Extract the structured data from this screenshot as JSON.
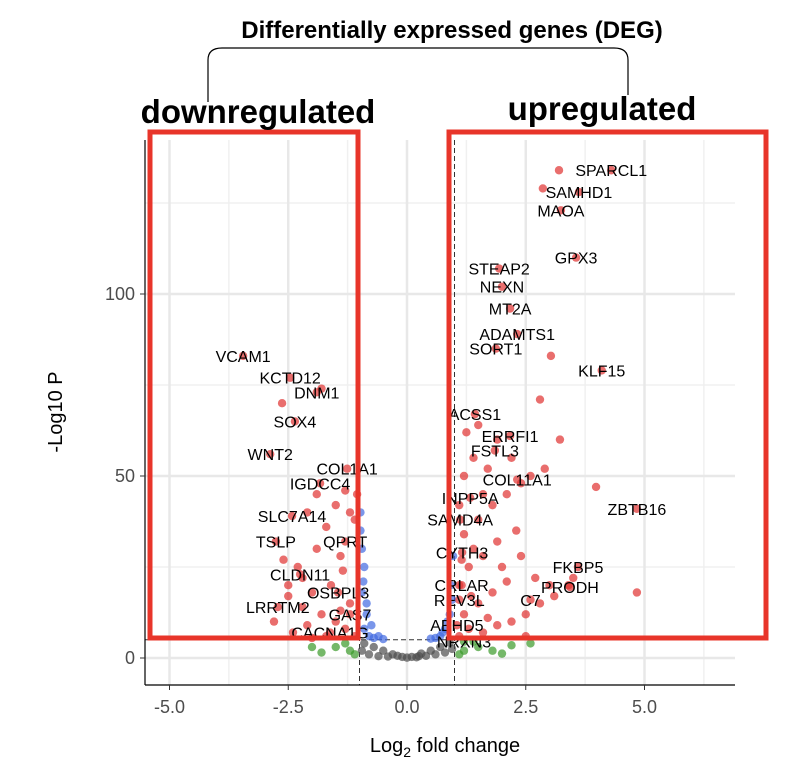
{
  "chart_data": {
    "type": "scatter",
    "title": "Differentially expressed genes (DEG)",
    "xlabel": "Log2 fold change",
    "ylabel": "-Log10 P",
    "xlim": [
      -5.5,
      6.8
    ],
    "ylim": [
      -7,
      142
    ],
    "xticks": [
      "-5.0",
      "-2.5",
      "0.0",
      "2.5",
      "5.0"
    ],
    "xtick_values": [
      -5,
      -2.5,
      0,
      2.5,
      5
    ],
    "yticks": [
      "0",
      "50",
      "100"
    ],
    "ytick_values": [
      0,
      50,
      100
    ],
    "grid": true,
    "fc_cutoff": 1,
    "p_cutoff": 5,
    "annotations": {
      "down_label": "downregulated",
      "up_label": "upregulated"
    },
    "colors": {
      "ns": "#4d4d4d",
      "log2fc": "#3a9a2a",
      "p": "#4169e1",
      "both": "#e0312f",
      "box": "#e8352a"
    },
    "labeled_genes": [
      {
        "gene": "SPARCL1",
        "x": 4.3,
        "y": 134
      },
      {
        "gene": "SAMHD1",
        "x": 3.62,
        "y": 128
      },
      {
        "gene": "MAOA",
        "x": 3.24,
        "y": 123
      },
      {
        "gene": "GPX3",
        "x": 3.56,
        "y": 110
      },
      {
        "gene": "STEAP2",
        "x": 1.94,
        "y": 107
      },
      {
        "gene": "NEXN",
        "x": 2.0,
        "y": 102
      },
      {
        "gene": "MT2A",
        "x": 2.17,
        "y": 96
      },
      {
        "gene": "ADAMTS1",
        "x": 2.32,
        "y": 89
      },
      {
        "gene": "SORT1",
        "x": 1.87,
        "y": 85
      },
      {
        "gene": "KLF15",
        "x": 4.1,
        "y": 79
      },
      {
        "gene": "ACSS1",
        "x": 1.43,
        "y": 67
      },
      {
        "gene": "ERRFI1",
        "x": 2.17,
        "y": 61
      },
      {
        "gene": "FSTL3",
        "x": 1.85,
        "y": 57
      },
      {
        "gene": "COL11A1",
        "x": 2.32,
        "y": 49
      },
      {
        "gene": "INPP5A",
        "x": 1.33,
        "y": 44
      },
      {
        "gene": "ZBTB16",
        "x": 4.84,
        "y": 41
      },
      {
        "gene": "SAMD4A",
        "x": 1.12,
        "y": 38
      },
      {
        "gene": "CYTH3",
        "x": 1.16,
        "y": 29
      },
      {
        "gene": "FKBP5",
        "x": 3.6,
        "y": 25
      },
      {
        "gene": "PRODH",
        "x": 3.43,
        "y": 19.5
      },
      {
        "gene": "CRLAR",
        "x": 1.15,
        "y": 20
      },
      {
        "gene": "REV3L",
        "x": 1.1,
        "y": 16
      },
      {
        "gene": "C7",
        "x": 2.6,
        "y": 16
      },
      {
        "gene": "ABHD5",
        "x": 1.05,
        "y": 9
      },
      {
        "gene": "NRXN3",
        "x": 1.2,
        "y": 4.5
      },
      {
        "gene": "VCAM1",
        "x": -3.45,
        "y": 83
      },
      {
        "gene": "KCTD12",
        "x": -2.46,
        "y": 77
      },
      {
        "gene": "DNM1",
        "x": -1.9,
        "y": 73
      },
      {
        "gene": "SOX4",
        "x": -2.36,
        "y": 65
      },
      {
        "gene": "WNT2",
        "x": -2.88,
        "y": 56
      },
      {
        "gene": "COL1A1",
        "x": -1.26,
        "y": 52
      },
      {
        "gene": "IGDCC4",
        "x": -1.83,
        "y": 48
      },
      {
        "gene": "SLC7A14",
        "x": -2.42,
        "y": 39
      },
      {
        "gene": "TSLP",
        "x": -2.76,
        "y": 32
      },
      {
        "gene": "QPRT",
        "x": -1.3,
        "y": 32
      },
      {
        "gene": "CLDN11",
        "x": -2.25,
        "y": 23
      },
      {
        "gene": "OSBPL3",
        "x": -1.45,
        "y": 18
      },
      {
        "gene": "LRRTM2",
        "x": -2.72,
        "y": 14
      },
      {
        "gene": "GAS7",
        "x": -1.2,
        "y": 12
      },
      {
        "gene": "CACNA1G",
        "x": -1.62,
        "y": 7
      }
    ],
    "other_points": [
      [
        -0.9,
        4
      ],
      [
        -0.7,
        3
      ],
      [
        -0.5,
        2
      ],
      [
        -0.3,
        1
      ],
      [
        -0.1,
        0.3
      ],
      [
        0,
        0.1
      ],
      [
        0.1,
        0.3
      ],
      [
        0.3,
        1.2
      ],
      [
        0.5,
        2
      ],
      [
        0.7,
        3
      ],
      [
        0.9,
        4.2
      ],
      [
        -0.8,
        1
      ],
      [
        -0.6,
        0.5
      ],
      [
        -0.4,
        0.4
      ],
      [
        0.2,
        0.2
      ],
      [
        0.4,
        0.6
      ],
      [
        0.6,
        1
      ],
      [
        0.8,
        1.5
      ],
      [
        -0.95,
        2
      ],
      [
        0.95,
        2.5
      ],
      [
        -0.2,
        0.6
      ],
      [
        0.25,
        0.5
      ],
      [
        -0.9,
        8
      ],
      [
        -0.85,
        12
      ],
      [
        -0.95,
        18
      ],
      [
        -0.8,
        6
      ],
      [
        -0.7,
        5.5
      ],
      [
        -0.9,
        25
      ],
      [
        -0.95,
        30
      ],
      [
        -0.98,
        35
      ],
      [
        -0.6,
        6
      ],
      [
        -0.75,
        9
      ],
      [
        -0.85,
        15
      ],
      [
        -0.92,
        21
      ],
      [
        0.7,
        6
      ],
      [
        0.8,
        8
      ],
      [
        0.9,
        12
      ],
      [
        0.95,
        16
      ],
      [
        0.85,
        10
      ],
      [
        0.92,
        20
      ],
      [
        0.97,
        28
      ],
      [
        0.6,
        5.5
      ],
      [
        0.75,
        7
      ],
      [
        -0.5,
        5.2
      ],
      [
        0.5,
        5.3
      ],
      [
        -0.98,
        40
      ],
      [
        -1.2,
        2
      ],
      [
        -1.5,
        3
      ],
      [
        -1.8,
        1.5
      ],
      [
        -1.3,
        4
      ],
      [
        -1.1,
        1
      ],
      [
        -2.0,
        3
      ],
      [
        1.2,
        2
      ],
      [
        1.5,
        3
      ],
      [
        1.8,
        2
      ],
      [
        2.2,
        3.5
      ],
      [
        2.6,
        4
      ],
      [
        1.1,
        1
      ],
      [
        1.4,
        4.5
      ],
      [
        2.0,
        1.2
      ],
      [
        -1.1,
        6
      ],
      [
        -1.3,
        8
      ],
      [
        -1.5,
        10
      ],
      [
        -1.8,
        12
      ],
      [
        -2.1,
        9
      ],
      [
        -2.4,
        7
      ],
      [
        -1.2,
        15
      ],
      [
        -1.6,
        20
      ],
      [
        -2.0,
        18
      ],
      [
        -2.3,
        25
      ],
      [
        -1.4,
        28
      ],
      [
        -1.9,
        30
      ],
      [
        -2.6,
        27
      ],
      [
        -1.1,
        38
      ],
      [
        -1.2,
        40
      ],
      [
        -1.7,
        36
      ],
      [
        -2.2,
        22
      ],
      [
        -2.5,
        17
      ],
      [
        -2.8,
        10
      ],
      [
        -1.35,
        24
      ],
      [
        -1.05,
        45
      ],
      [
        -1.5,
        42
      ],
      [
        -1.9,
        45
      ],
      [
        -2.1,
        40
      ],
      [
        -1.3,
        46
      ],
      [
        -2.5,
        20
      ],
      [
        -2.2,
        14
      ],
      [
        -1.7,
        6
      ],
      [
        -2.0,
        5.5
      ],
      [
        -1.4,
        13
      ],
      [
        -2.63,
        70
      ],
      [
        -1.8,
        74
      ],
      [
        1.1,
        6
      ],
      [
        1.3,
        8
      ],
      [
        1.6,
        7
      ],
      [
        1.9,
        9
      ],
      [
        2.2,
        10
      ],
      [
        2.5,
        12
      ],
      [
        2.8,
        15
      ],
      [
        3.1,
        17
      ],
      [
        3.4,
        20
      ],
      [
        1.2,
        12
      ],
      [
        1.5,
        15
      ],
      [
        1.8,
        18
      ],
      [
        2.1,
        21
      ],
      [
        1.1,
        20
      ],
      [
        1.3,
        25
      ],
      [
        1.6,
        28
      ],
      [
        1.9,
        32
      ],
      [
        2.3,
        35
      ],
      [
        1.2,
        34
      ],
      [
        1.5,
        38
      ],
      [
        1.8,
        42
      ],
      [
        2.1,
        45
      ],
      [
        2.4,
        48
      ],
      [
        1.2,
        50
      ],
      [
        1.4,
        55
      ],
      [
        1.7,
        52
      ],
      [
        2.6,
        50
      ],
      [
        2.9,
        52
      ],
      [
        1.1,
        42
      ],
      [
        1.4,
        30
      ],
      [
        2.0,
        25
      ],
      [
        2.4,
        28
      ],
      [
        2.7,
        22
      ],
      [
        3.0,
        20
      ],
      [
        1.7,
        11
      ],
      [
        2.5,
        6
      ],
      [
        3.5,
        22
      ],
      [
        1.25,
        62
      ],
      [
        1.5,
        64
      ],
      [
        1.9,
        60
      ],
      [
        2.2,
        55
      ],
      [
        1.6,
        45
      ],
      [
        1.35,
        17
      ],
      [
        1.15,
        27
      ],
      [
        3.2,
        134
      ],
      [
        2.86,
        129
      ],
      [
        3.03,
        83
      ],
      [
        2.8,
        71
      ],
      [
        3.22,
        60
      ],
      [
        3.98,
        47
      ],
      [
        4.84,
        18
      ]
    ]
  }
}
